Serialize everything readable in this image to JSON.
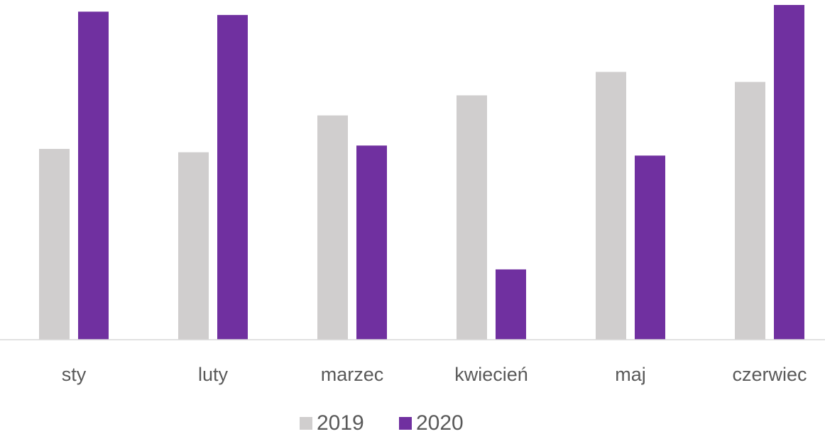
{
  "chart_data": {
    "type": "bar",
    "categories": [
      "sty",
      "luty",
      "marzec",
      "kwiecień",
      "maj",
      "czerwiec"
    ],
    "series": [
      {
        "name": "2019",
        "color": "#d0cece",
        "values": [
          57,
          56,
          67,
          73,
          80,
          77
        ]
      },
      {
        "name": "2020",
        "color": "#7030a0",
        "values": [
          98,
          97,
          58,
          21,
          55,
          100
        ]
      }
    ],
    "ylim": [
      0,
      100
    ]
  }
}
